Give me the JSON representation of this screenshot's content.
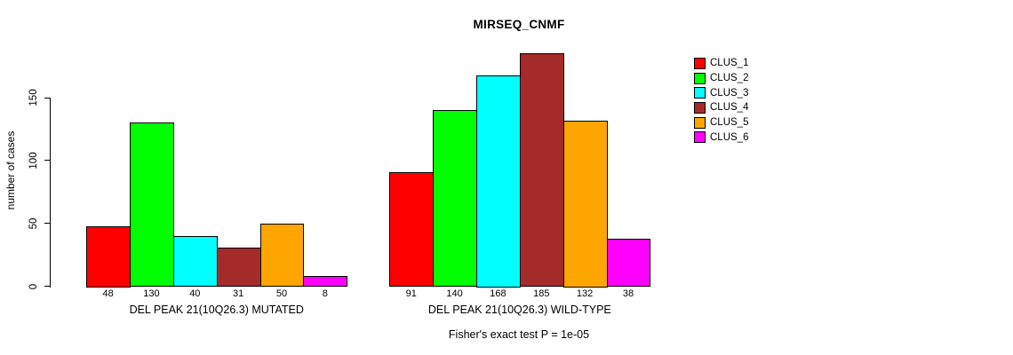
{
  "chart_data": {
    "type": "bar",
    "title": "MIRSEQ_CNMF",
    "ylabel": "number of cases",
    "yticks": [
      0,
      50,
      100,
      150
    ],
    "ylim": [
      0,
      190
    ],
    "grid": false,
    "legend_position": "right",
    "bar_value_labels": true,
    "categories": [
      "DEL PEAK 21(10Q26.3) MUTATED",
      "DEL PEAK 21(10Q26.3) WILD-TYPE"
    ],
    "series": [
      {
        "name": "CLUS_1",
        "color": "#ff0000",
        "values": [
          48,
          91
        ]
      },
      {
        "name": "CLUS_2",
        "color": "#00ff00",
        "values": [
          130,
          140
        ]
      },
      {
        "name": "CLUS_3",
        "color": "#00ffff",
        "values": [
          40,
          168
        ]
      },
      {
        "name": "CLUS_4",
        "color": "#a52a2a",
        "values": [
          31,
          185
        ]
      },
      {
        "name": "CLUS_5",
        "color": "#ffa500",
        "values": [
          50,
          132
        ]
      },
      {
        "name": "CLUS_6",
        "color": "#ff00ff",
        "values": [
          8,
          38
        ]
      }
    ],
    "annotation": "Fisher's exact test P = 1e-05"
  }
}
